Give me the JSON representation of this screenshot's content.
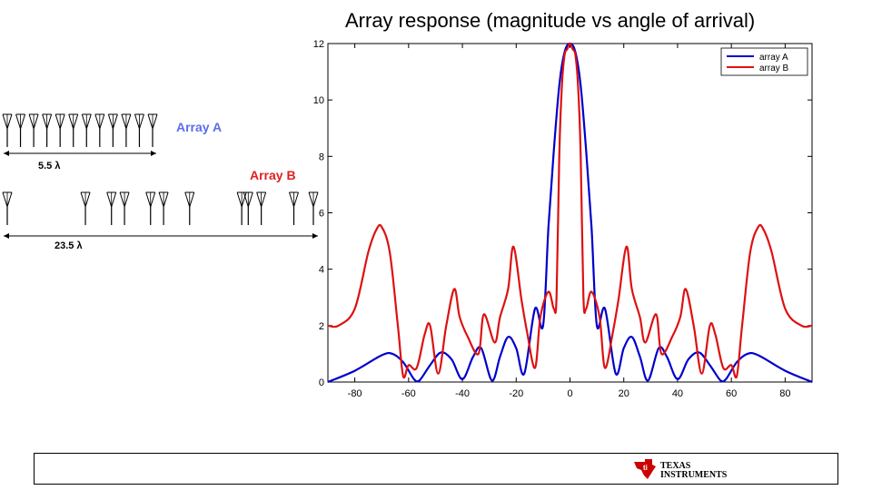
{
  "slide": {
    "title": "Array response (magnitude vs angle of arrival)",
    "logo_text_1": "TEXAS",
    "logo_text_2": "INSTRUMENTS"
  },
  "diagram": {
    "array_a": {
      "label": "Array A",
      "aperture_label": "5.5 λ",
      "color": "#5b6ee8",
      "element_count": 12,
      "aperture_wavelengths": 5.5
    },
    "array_b": {
      "label": "Array B",
      "aperture_label": "23.5 λ",
      "color": "#e02020",
      "element_count": 12,
      "aperture_wavelengths": 23.5,
      "element_positions_wavelengths": [
        0,
        6,
        8,
        9,
        11,
        12,
        14,
        18,
        18.5,
        19.5,
        22,
        23.5
      ]
    }
  },
  "chart_data": {
    "type": "line",
    "title": "",
    "xlabel": "",
    "ylabel": "",
    "xlim": [
      -90,
      90
    ],
    "ylim": [
      0,
      12
    ],
    "xticks": [
      -80,
      -60,
      -40,
      -20,
      0,
      20,
      40,
      60,
      80
    ],
    "yticks": [
      0,
      2,
      4,
      6,
      8,
      10,
      12
    ],
    "grid": false,
    "legend_position": "top-right",
    "series": [
      {
        "name": "array A",
        "color": "#0000cc",
        "x": [
          -90,
          -80,
          -70,
          -66,
          -62,
          -58,
          -56,
          -52,
          -48,
          -44,
          -40,
          -36,
          -33,
          -29,
          -26,
          -23,
          -20,
          -17,
          -13,
          -10,
          -8,
          -6,
          -4,
          -2,
          0,
          2,
          4,
          6,
          8,
          10,
          13,
          17,
          20,
          23,
          26,
          29,
          33,
          36,
          40,
          44,
          48,
          52,
          56,
          58,
          62,
          66,
          70,
          80,
          90
        ],
        "values": [
          0,
          0.4,
          0.95,
          1.0,
          0.7,
          0.1,
          0.05,
          0.6,
          1.05,
          0.8,
          0.1,
          0.9,
          1.2,
          0.05,
          0.9,
          1.6,
          1.2,
          0.3,
          2.6,
          2.0,
          5.5,
          8.2,
          10.5,
          11.7,
          12,
          11.7,
          10.5,
          8.2,
          5.5,
          2.0,
          2.6,
          0.3,
          1.2,
          1.6,
          0.9,
          0.05,
          1.2,
          0.9,
          0.1,
          0.8,
          1.05,
          0.6,
          0.05,
          0.1,
          0.7,
          1.0,
          0.95,
          0.4,
          0
        ]
      },
      {
        "name": "array B",
        "color": "#dd1111",
        "x": [
          -90,
          -86,
          -80,
          -75,
          -72,
          -70,
          -67,
          -64,
          -62,
          -60,
          -57,
          -54,
          -52,
          -49,
          -46,
          -43,
          -41,
          -38,
          -34,
          -32,
          -28,
          -26,
          -23,
          -21,
          -18,
          -16,
          -13,
          -11,
          -8,
          -6,
          -5,
          -4,
          -3,
          -2,
          -1,
          0,
          1,
          2,
          3,
          4,
          5,
          6,
          8,
          11,
          13,
          16,
          18,
          21,
          23,
          26,
          28,
          32,
          34,
          38,
          41,
          43,
          46,
          49,
          52,
          54,
          57,
          60,
          62,
          64,
          67,
          70,
          72,
          75,
          80,
          86,
          90
        ],
        "values": [
          2,
          2.0,
          2.6,
          4.6,
          5.4,
          5.5,
          4.6,
          2.0,
          0.2,
          0.6,
          0.5,
          1.7,
          2.0,
          0.3,
          2.0,
          3.3,
          2.3,
          1.6,
          1.0,
          2.4,
          1.4,
          2.3,
          3.3,
          4.8,
          2.9,
          1.8,
          0.5,
          2.3,
          3.2,
          2.6,
          3.0,
          8.0,
          10.5,
          11.6,
          11.8,
          12,
          11.8,
          11.6,
          10.5,
          8.0,
          3.0,
          2.6,
          3.2,
          2.3,
          0.5,
          1.8,
          2.9,
          4.8,
          3.3,
          2.3,
          1.4,
          2.4,
          1.0,
          1.6,
          2.3,
          3.3,
          2.0,
          0.3,
          2.0,
          1.7,
          0.5,
          0.6,
          0.2,
          2.0,
          4.6,
          5.5,
          5.4,
          4.6,
          2.6,
          2.0,
          2
        ]
      }
    ]
  }
}
